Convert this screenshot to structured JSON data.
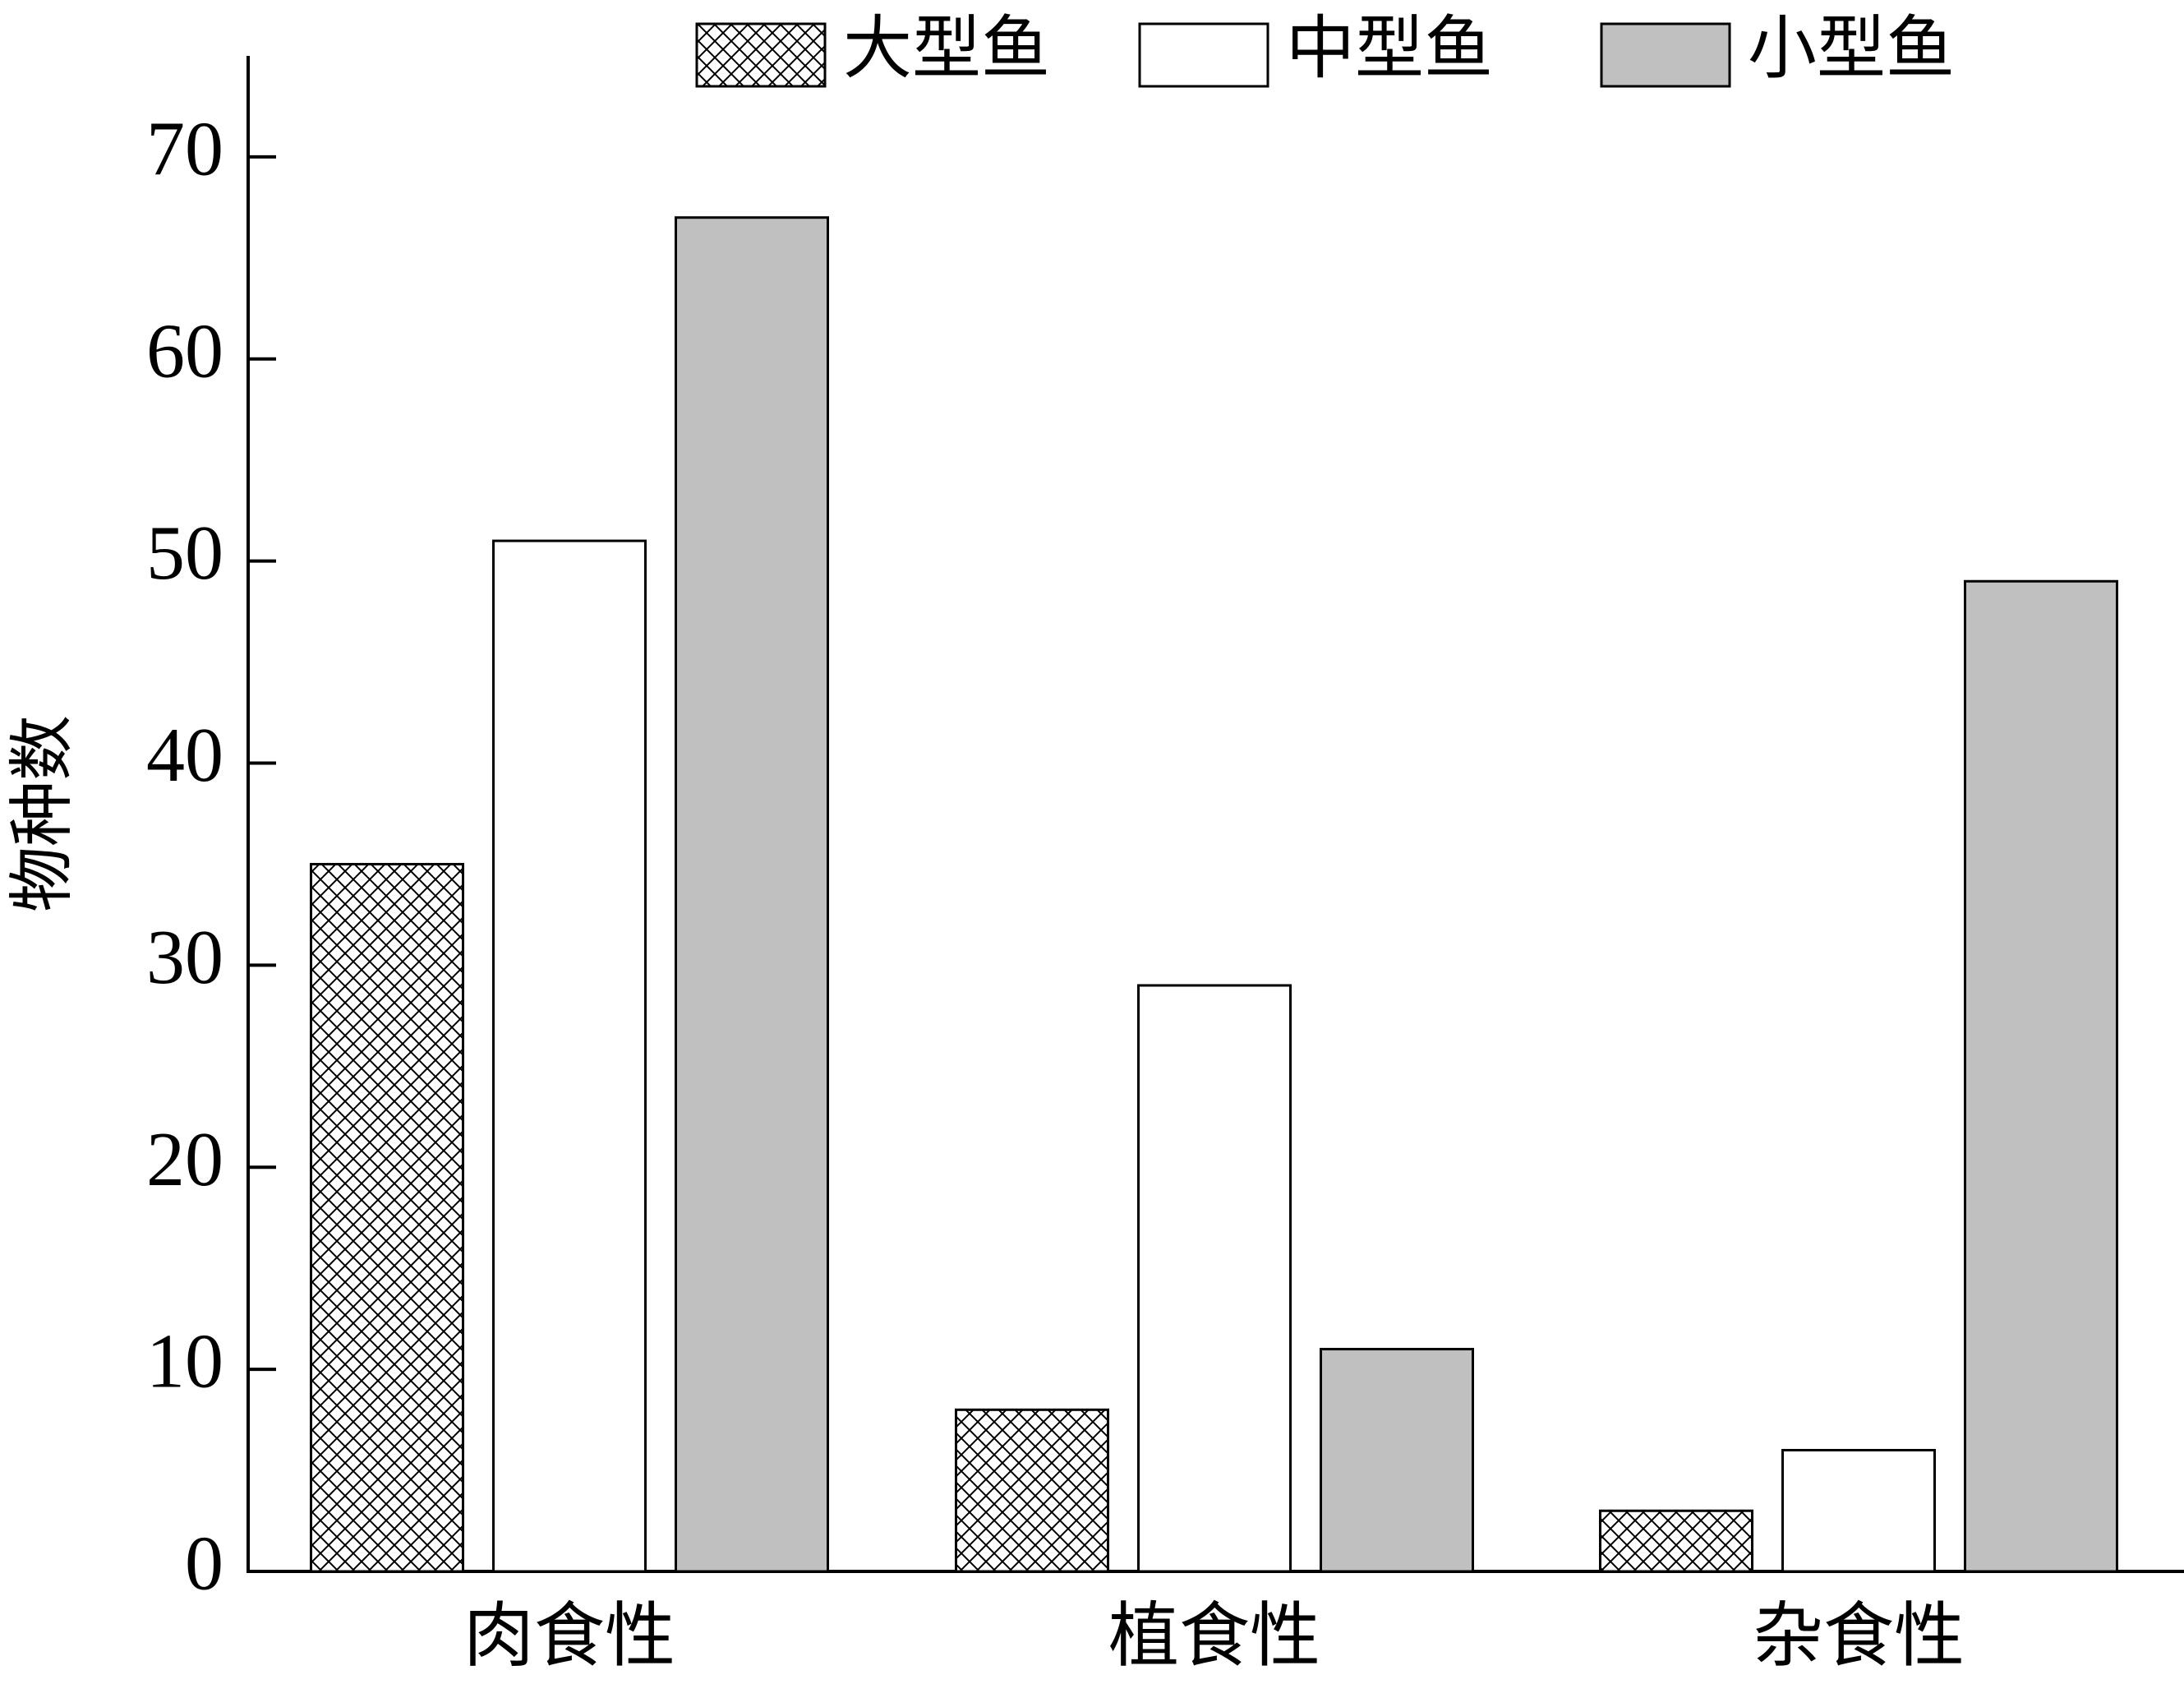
{
  "chart_data": {
    "type": "bar",
    "y_label": "物种数",
    "categories": [
      "肉食性",
      "植食性",
      "杂食性"
    ],
    "series": [
      {
        "name": "大型鱼",
        "color": "#ffffff",
        "hatch": true,
        "values": [
          35,
          8,
          3
        ]
      },
      {
        "name": "中型鱼",
        "color": "#ffffff",
        "hatch": false,
        "values": [
          51,
          29,
          6
        ]
      },
      {
        "name": "小型鱼",
        "color": "#c0c0c0",
        "hatch": false,
        "values": [
          67,
          11,
          49
        ]
      }
    ],
    "ylim": [
      0,
      75
    ],
    "yticks": [
      0,
      10,
      20,
      30,
      40,
      50,
      60,
      70
    ],
    "grid": false
  }
}
